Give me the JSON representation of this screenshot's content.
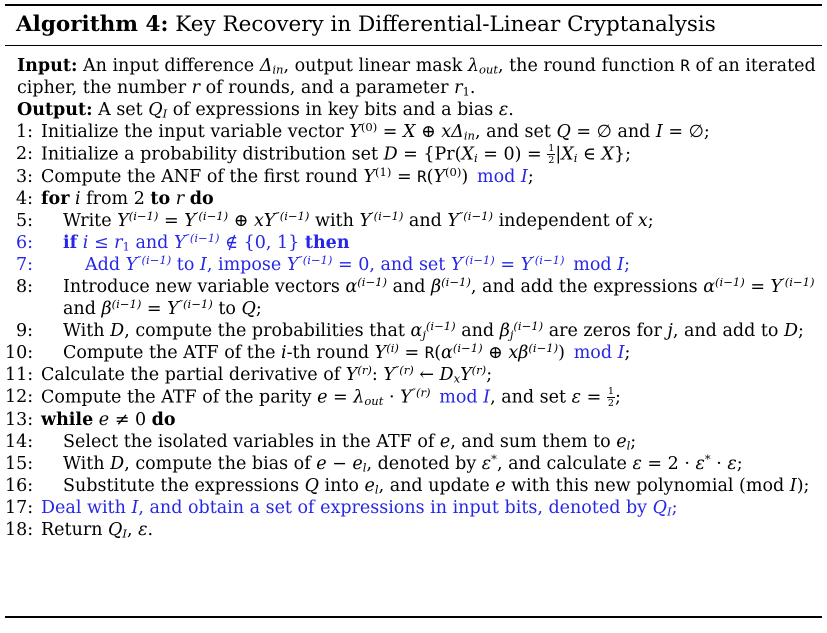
{
  "colors": {
    "blue": "#2626e6",
    "text": "#000000",
    "background": "#ffffff",
    "rule": "#000000"
  },
  "title": {
    "label": "Algorithm 4:",
    "rest": " Key Recovery in Differential-Linear Cryptanalysis"
  },
  "header": [
    {
      "label": "Input:",
      "segments": [
        {
          "t": " An input difference "
        },
        {
          "t": "Δ",
          "i": 1
        },
        {
          "t": "in",
          "sub": 1,
          "i": 1
        },
        {
          "t": ", output linear mask "
        },
        {
          "t": "λ",
          "i": 1
        },
        {
          "t": "out",
          "sub": 1,
          "i": 1
        },
        {
          "t": ", the round function "
        },
        {
          "t": "R",
          "tt": 1
        },
        {
          "t": " of an iterated cipher, the number "
        },
        {
          "t": "r",
          "i": 1
        },
        {
          "t": " of rounds, and a parameter "
        },
        {
          "t": "r",
          "i": 1
        },
        {
          "t": "1",
          "sub": 1
        },
        {
          "t": "."
        }
      ]
    },
    {
      "label": "Output:",
      "segments": [
        {
          "t": " A set "
        },
        {
          "t": "Q",
          "i": 1
        },
        {
          "t": "I",
          "sub": 1,
          "i": 1
        },
        {
          "t": " of expressions in key bits and a bias "
        },
        {
          "t": "ε",
          "i": 1
        },
        {
          "t": "."
        }
      ]
    }
  ],
  "lines": [
    {
      "num": "1:",
      "indent": 0,
      "blue": 0,
      "nb": 0,
      "segments": [
        {
          "t": "Initialize the input variable vector "
        },
        {
          "t": "Y",
          "i": 1
        },
        {
          "t": "(0)",
          "sup": 1
        },
        {
          "t": " = "
        },
        {
          "t": "X",
          "i": 1
        },
        {
          "t": " ⊕ "
        },
        {
          "t": "xΔ",
          "i": 1
        },
        {
          "t": "in",
          "sub": 1,
          "i": 1
        },
        {
          "t": ", and set "
        },
        {
          "t": "Q",
          "i": 1
        },
        {
          "t": " = ∅ and "
        },
        {
          "t": "I",
          "i": 1
        },
        {
          "t": " = ∅;"
        }
      ]
    },
    {
      "num": "2:",
      "indent": 0,
      "blue": 0,
      "nb": 0,
      "segments": [
        {
          "t": "Initialize a probability distribution set "
        },
        {
          "t": "D",
          "i": 1
        },
        {
          "t": " = {Pr("
        },
        {
          "t": "X",
          "i": 1
        },
        {
          "t": "i",
          "sub": 1,
          "i": 1
        },
        {
          "t": " = 0) = "
        },
        {
          "f": [
            "1",
            "2"
          ]
        },
        {
          "t": "|"
        },
        {
          "t": "X",
          "i": 1
        },
        {
          "t": "i",
          "sub": 1,
          "i": 1
        },
        {
          "t": " ∈ "
        },
        {
          "t": "X",
          "i": 1
        },
        {
          "t": "};"
        }
      ]
    },
    {
      "num": "3:",
      "indent": 0,
      "blue": 0,
      "nb": 0,
      "segments": [
        {
          "t": "Compute the ANF of the first round "
        },
        {
          "t": "Y",
          "i": 1
        },
        {
          "t": "(1)",
          "sup": 1
        },
        {
          "t": " = "
        },
        {
          "t": "R",
          "tt": 1
        },
        {
          "t": "("
        },
        {
          "t": "Y",
          "i": 1
        },
        {
          "t": "(0)",
          "sup": 1
        },
        {
          "t": ")"
        },
        {
          "t": " "
        },
        {
          "t": "mod ",
          "c": 1
        },
        {
          "t": "I",
          "i": 1,
          "c": 1
        },
        {
          "t": ";"
        }
      ]
    },
    {
      "num": "4:",
      "indent": 0,
      "blue": 0,
      "nb": 0,
      "segments": [
        {
          "t": "for",
          "b": 1
        },
        {
          "t": " "
        },
        {
          "t": "i",
          "i": 1
        },
        {
          "t": " from 2 "
        },
        {
          "t": "to",
          "b": 1
        },
        {
          "t": " "
        },
        {
          "t": "r",
          "i": 1
        },
        {
          "t": " "
        },
        {
          "t": "do",
          "b": 1
        }
      ]
    },
    {
      "num": "5:",
      "indent": 1,
      "blue": 0,
      "nb": 0,
      "segments": [
        {
          "t": "Write "
        },
        {
          "t": "Y",
          "i": 1
        },
        {
          "t": "(i−1)",
          "sup": 1,
          "i": 1
        },
        {
          "t": " = "
        },
        {
          "t": "Y",
          "i": 1
        },
        {
          "t": "′(i−1)",
          "sup": 1,
          "i": 1
        },
        {
          "t": " ⊕ "
        },
        {
          "t": "xY",
          "i": 1
        },
        {
          "t": "″(i−1)",
          "sup": 1,
          "i": 1
        },
        {
          "t": " with "
        },
        {
          "t": "Y",
          "i": 1
        },
        {
          "t": "′(i−1)",
          "sup": 1,
          "i": 1
        },
        {
          "t": " and "
        },
        {
          "t": "Y",
          "i": 1
        },
        {
          "t": "″(i−1)",
          "sup": 1,
          "i": 1
        },
        {
          "t": " independent of "
        },
        {
          "t": "x",
          "i": 1
        },
        {
          "t": ";"
        }
      ]
    },
    {
      "num": "6:",
      "indent": 1,
      "blue": 1,
      "nb": 1,
      "segments": [
        {
          "t": "if",
          "b": 1
        },
        {
          "t": " "
        },
        {
          "t": "i",
          "i": 1
        },
        {
          "t": " ≤ "
        },
        {
          "t": "r",
          "i": 1
        },
        {
          "t": "1",
          "sub": 1
        },
        {
          "t": " and "
        },
        {
          "t": "Y",
          "i": 1
        },
        {
          "t": "″(i−1)",
          "sup": 1,
          "i": 1
        },
        {
          "t": " ∉ {0, 1} "
        },
        {
          "t": "then",
          "b": 1
        }
      ]
    },
    {
      "num": "7:",
      "indent": 2,
      "blue": 1,
      "nb": 1,
      "segments": [
        {
          "t": "Add "
        },
        {
          "t": "Y",
          "i": 1
        },
        {
          "t": "″(i−1)",
          "sup": 1,
          "i": 1
        },
        {
          "t": " to "
        },
        {
          "t": "I",
          "i": 1
        },
        {
          "t": ", impose "
        },
        {
          "t": "Y",
          "i": 1
        },
        {
          "t": "″(i−1)",
          "sup": 1,
          "i": 1
        },
        {
          "t": " = 0, and set "
        },
        {
          "t": "Y",
          "i": 1
        },
        {
          "t": "′(i−1)",
          "sup": 1,
          "i": 1
        },
        {
          "t": " = "
        },
        {
          "t": "Y",
          "i": 1
        },
        {
          "t": "′(i−1)",
          "sup": 1,
          "i": 1
        },
        {
          "t": " mod "
        },
        {
          "t": "I",
          "i": 1
        },
        {
          "t": ";"
        }
      ]
    },
    {
      "num": "8:",
      "indent": 1,
      "blue": 0,
      "nb": 0,
      "segments": [
        {
          "t": "Introduce new variable vectors "
        },
        {
          "t": "α",
          "i": 1
        },
        {
          "t": "(i−1)",
          "sup": 1,
          "i": 1
        },
        {
          "t": " and "
        },
        {
          "t": "β",
          "i": 1
        },
        {
          "t": "(i−1)",
          "sup": 1,
          "i": 1
        },
        {
          "t": ", and add the expressions "
        },
        {
          "t": "α",
          "i": 1
        },
        {
          "t": "(i−1)",
          "sup": 1,
          "i": 1
        },
        {
          "t": " = "
        },
        {
          "t": "Y",
          "i": 1
        },
        {
          "t": "′(i−1)",
          "sup": 1,
          "i": 1
        },
        {
          "t": " and "
        },
        {
          "t": "β",
          "i": 1
        },
        {
          "t": "(i−1)",
          "sup": 1,
          "i": 1
        },
        {
          "t": " = "
        },
        {
          "t": "Y",
          "i": 1
        },
        {
          "t": "″(i−1)",
          "sup": 1,
          "i": 1
        },
        {
          "t": " to "
        },
        {
          "t": "Q",
          "i": 1
        },
        {
          "t": ";"
        }
      ]
    },
    {
      "num": "9:",
      "indent": 1,
      "blue": 0,
      "nb": 0,
      "segments": [
        {
          "t": "With "
        },
        {
          "t": "D",
          "i": 1
        },
        {
          "t": ", compute the probabilities that "
        },
        {
          "t": "α",
          "i": 1
        },
        {
          "t": "j",
          "sub": 1,
          "i": 1
        },
        {
          "t": "(i−1)",
          "sup": 1,
          "i": 1
        },
        {
          "t": " and "
        },
        {
          "t": "β",
          "i": 1
        },
        {
          "t": "j",
          "sub": 1,
          "i": 1
        },
        {
          "t": "(i−1)",
          "sup": 1,
          "i": 1
        },
        {
          "t": " are zeros for "
        },
        {
          "t": "j",
          "i": 1
        },
        {
          "t": ", and add to "
        },
        {
          "t": "D",
          "i": 1
        },
        {
          "t": ";"
        }
      ]
    },
    {
      "num": "10:",
      "indent": 1,
      "blue": 0,
      "nb": 0,
      "segments": [
        {
          "t": "Compute the ATF of the "
        },
        {
          "t": "i",
          "i": 1
        },
        {
          "t": "-th round "
        },
        {
          "t": "Y",
          "i": 1
        },
        {
          "t": "(i)",
          "sup": 1,
          "i": 1
        },
        {
          "t": " = "
        },
        {
          "t": "R",
          "tt": 1
        },
        {
          "t": "("
        },
        {
          "t": "α",
          "i": 1
        },
        {
          "t": "(i−1)",
          "sup": 1,
          "i": 1
        },
        {
          "t": " ⊕ "
        },
        {
          "t": "xβ",
          "i": 1
        },
        {
          "t": "(i−1)",
          "sup": 1,
          "i": 1
        },
        {
          "t": ")"
        },
        {
          "t": " "
        },
        {
          "t": "mod ",
          "c": 1
        },
        {
          "t": "I",
          "i": 1,
          "c": 1
        },
        {
          "t": ";"
        }
      ]
    },
    {
      "num": "11:",
      "indent": 0,
      "blue": 0,
      "nb": 0,
      "segments": [
        {
          "t": "Calculate the partial derivative of "
        },
        {
          "t": "Y",
          "i": 1
        },
        {
          "t": "(r)",
          "sup": 1,
          "i": 1
        },
        {
          "t": ": "
        },
        {
          "t": "Y",
          "i": 1
        },
        {
          "t": "″(r)",
          "sup": 1,
          "i": 1
        },
        {
          "t": " ← "
        },
        {
          "t": "D",
          "i": 1
        },
        {
          "t": "x",
          "sub": 1,
          "i": 1
        },
        {
          "t": "Y",
          "i": 1
        },
        {
          "t": "(r)",
          "sup": 1,
          "i": 1
        },
        {
          "t": ";"
        }
      ]
    },
    {
      "num": "12:",
      "indent": 0,
      "blue": 0,
      "nb": 0,
      "segments": [
        {
          "t": "Compute the ATF of the parity "
        },
        {
          "t": "e",
          "i": 1
        },
        {
          "t": " = "
        },
        {
          "t": "λ",
          "i": 1
        },
        {
          "t": "out",
          "sub": 1,
          "i": 1
        },
        {
          "t": " · "
        },
        {
          "t": "Y",
          "i": 1
        },
        {
          "t": "″(r)",
          "sup": 1,
          "i": 1
        },
        {
          "t": " "
        },
        {
          "t": "mod ",
          "c": 1
        },
        {
          "t": "I",
          "i": 1,
          "c": 1
        },
        {
          "t": ", and set "
        },
        {
          "t": "ε",
          "i": 1
        },
        {
          "t": " = "
        },
        {
          "f": [
            "1",
            "2"
          ]
        },
        {
          "t": ";"
        }
      ]
    },
    {
      "num": "13:",
      "indent": 0,
      "blue": 0,
      "nb": 0,
      "segments": [
        {
          "t": "while",
          "b": 1
        },
        {
          "t": " "
        },
        {
          "t": "e",
          "i": 1
        },
        {
          "t": " ≠ 0 "
        },
        {
          "t": "do",
          "b": 1
        }
      ]
    },
    {
      "num": "14:",
      "indent": 1,
      "blue": 0,
      "nb": 0,
      "segments": [
        {
          "t": "Select the isolated variables in the ATF of "
        },
        {
          "t": "e",
          "i": 1
        },
        {
          "t": ", and sum them to "
        },
        {
          "t": "e",
          "i": 1
        },
        {
          "t": "l",
          "sub": 1,
          "i": 1
        },
        {
          "t": ";"
        }
      ]
    },
    {
      "num": "15:",
      "indent": 1,
      "blue": 0,
      "nb": 0,
      "segments": [
        {
          "t": "With "
        },
        {
          "t": "D",
          "i": 1
        },
        {
          "t": ", compute the bias of "
        },
        {
          "t": "e",
          "i": 1
        },
        {
          "t": " − "
        },
        {
          "t": "e",
          "i": 1
        },
        {
          "t": "l",
          "sub": 1,
          "i": 1
        },
        {
          "t": ", denoted by "
        },
        {
          "t": "ε",
          "i": 1
        },
        {
          "t": "*",
          "sup": 1
        },
        {
          "t": ", and calculate "
        },
        {
          "t": "ε",
          "i": 1
        },
        {
          "t": " = 2 · "
        },
        {
          "t": "ε",
          "i": 1
        },
        {
          "t": "*",
          "sup": 1
        },
        {
          "t": " · "
        },
        {
          "t": "ε",
          "i": 1
        },
        {
          "t": ";"
        }
      ]
    },
    {
      "num": "16:",
      "indent": 1,
      "blue": 0,
      "nb": 0,
      "segments": [
        {
          "t": "Substitute the expressions "
        },
        {
          "t": "Q",
          "i": 1
        },
        {
          "t": " into "
        },
        {
          "t": "e",
          "i": 1
        },
        {
          "t": "l",
          "sub": 1,
          "i": 1
        },
        {
          "t": ", and update "
        },
        {
          "t": "e",
          "i": 1
        },
        {
          "t": " with this new polynomial (mod "
        },
        {
          "t": "I",
          "i": 1
        },
        {
          "t": ");"
        }
      ]
    },
    {
      "num": "17:",
      "indent": 0,
      "blue": 1,
      "nb": 0,
      "segments": [
        {
          "t": "Deal with "
        },
        {
          "t": "I",
          "i": 1
        },
        {
          "t": ", and obtain a set of expressions in input bits, denoted by "
        },
        {
          "t": "Q",
          "i": 1
        },
        {
          "t": "I",
          "sub": 1,
          "i": 1
        },
        {
          "t": ";"
        }
      ]
    },
    {
      "num": "18:",
      "indent": 0,
      "blue": 0,
      "nb": 0,
      "segments": [
        {
          "t": "Return "
        },
        {
          "t": "Q",
          "i": 1
        },
        {
          "t": "I",
          "sub": 1,
          "i": 1
        },
        {
          "t": ", "
        },
        {
          "t": "ε",
          "i": 1
        },
        {
          "t": "."
        }
      ]
    }
  ]
}
